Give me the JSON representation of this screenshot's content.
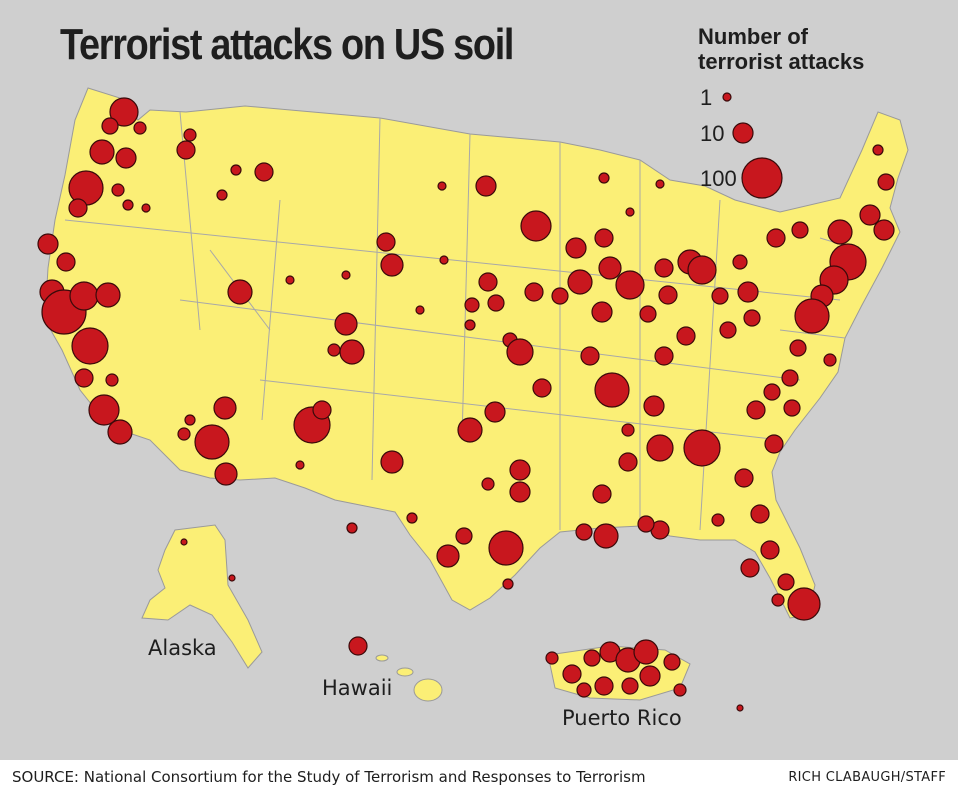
{
  "title": "Terrorist attacks on US soil",
  "legend": {
    "title_line1": "Number of",
    "title_line2": "terrorist attacks",
    "items": [
      {
        "label": "1",
        "value": 1
      },
      {
        "label": "10",
        "value": 10
      },
      {
        "label": "100",
        "value": 100
      }
    ]
  },
  "regions": {
    "alaska": "Alaska",
    "hawaii": "Hawaii",
    "puerto_rico": "Puerto Rico"
  },
  "source": "SOURCE: National Consortium for the Study of Terrorism and Responses to Terrorism",
  "credit": "RICH CLABAUGH/STAFF",
  "colors": {
    "background": "#cfcfcf",
    "land": "#fbef76",
    "border": "#a8a8a8",
    "marker": "#c8171e",
    "marker_stroke": "#3a0a0a",
    "text": "#1e1e1e"
  }
}
